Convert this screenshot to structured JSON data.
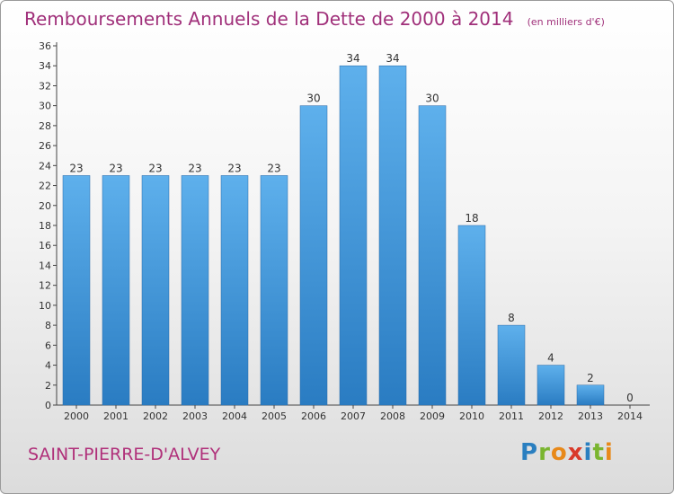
{
  "title": "Remboursements Annuels de la Dette de 2000 à 2014",
  "unit": "(en milliers d'€)",
  "commune": "SAINT-PIERRE-D'ALVEY",
  "logo": {
    "text": "Proxiti",
    "letter_colors": [
      "#2a7fc0",
      "#7ab530",
      "#e8891a",
      "#d93a2b",
      "#2a7fc0",
      "#7ab530",
      "#e8891a"
    ]
  },
  "colors": {
    "bar_top": "#5eb0ec",
    "bar_bottom": "#2a7cc2",
    "title": "#a0307a",
    "axis": "#333333"
  },
  "chart_data": {
    "type": "bar",
    "categories": [
      "2000",
      "2001",
      "2002",
      "2003",
      "2004",
      "2005",
      "2006",
      "2007",
      "2008",
      "2009",
      "2010",
      "2011",
      "2012",
      "2013",
      "2014"
    ],
    "values": [
      23,
      23,
      23,
      23,
      23,
      23,
      30,
      34,
      34,
      30,
      18,
      8,
      4,
      2,
      0
    ],
    "ylim": [
      0,
      36
    ],
    "yticks": [
      0,
      2,
      4,
      6,
      8,
      10,
      12,
      14,
      16,
      18,
      20,
      22,
      24,
      26,
      28,
      30,
      32,
      34,
      36
    ],
    "grid": false,
    "data_labels": true
  }
}
